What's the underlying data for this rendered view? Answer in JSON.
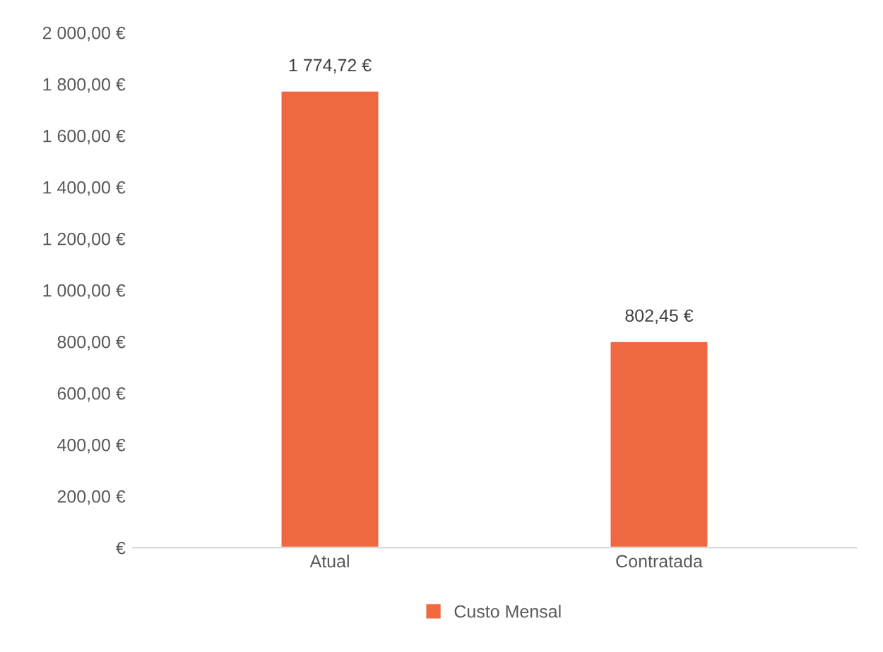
{
  "chart_data": {
    "type": "bar",
    "categories": [
      "Atual",
      "Contratada"
    ],
    "series": [
      {
        "name": "Custo Mensal",
        "color": "#ee6941",
        "values": [
          1774.72,
          802.45
        ]
      }
    ],
    "value_labels": [
      "1 774,72 €",
      "802,45 €"
    ],
    "ylim": [
      0,
      2000
    ],
    "yticks": [
      {
        "value": 0,
        "label": "€"
      },
      {
        "value": 200,
        "label": "200,00 €"
      },
      {
        "value": 400,
        "label": "400,00 €"
      },
      {
        "value": 600,
        "label": "600,00 €"
      },
      {
        "value": 800,
        "label": "800,00 €"
      },
      {
        "value": 1000,
        "label": "1 000,00 €"
      },
      {
        "value": 1200,
        "label": "1 200,00 €"
      },
      {
        "value": 1400,
        "label": "1 400,00 €"
      },
      {
        "value": 1600,
        "label": "1 600,00 €"
      },
      {
        "value": 1800,
        "label": "1 800,00 €"
      },
      {
        "value": 2000,
        "label": "2 000,00 €"
      }
    ],
    "grid": false,
    "legend": "bottom"
  }
}
